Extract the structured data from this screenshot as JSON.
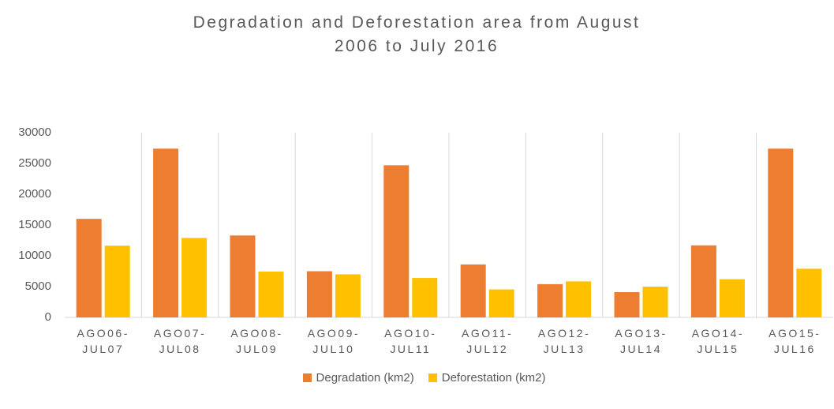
{
  "chart_data": {
    "type": "bar",
    "title": "Degradation and Deforestation area from August 2006 to July 2016",
    "categories": [
      "AGO06-JUL07",
      "AGO07-JUL08",
      "AGO08-JUL09",
      "AGO09-JUL10",
      "AGO10-JUL11",
      "AGO11-JUL12",
      "AGO12-JUL13",
      "AGO13-JUL14",
      "AGO14-JUL15",
      "AGO15-JUL16"
    ],
    "series": [
      {
        "name": "Degradation (km2)",
        "color": "#ed7d31",
        "values": [
          16000,
          27400,
          13300,
          7500,
          24700,
          8600,
          5400,
          4100,
          11700,
          27400
        ]
      },
      {
        "name": "Deforestation (km2)",
        "color": "#ffc000",
        "values": [
          11650,
          12900,
          7450,
          7000,
          6400,
          4550,
          5850,
          5000,
          6200,
          7900
        ]
      }
    ],
    "ylim": [
      0,
      30000
    ],
    "yticks": [
      0,
      5000,
      10000,
      15000,
      20000,
      25000,
      30000
    ],
    "legend": "bottom"
  }
}
